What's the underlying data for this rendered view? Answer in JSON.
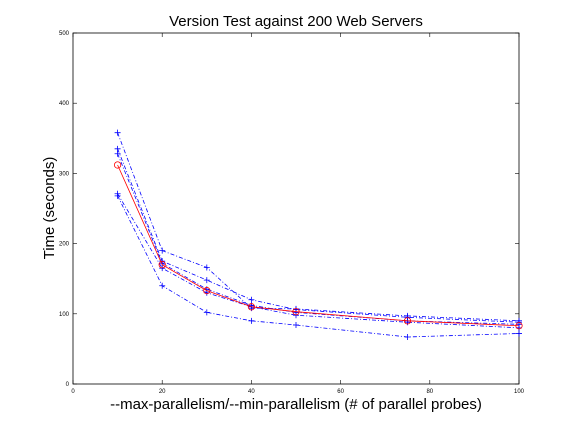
{
  "chart_data": {
    "type": "line",
    "title": "Version Test against 200 Web Servers",
    "xlabel": "--max-parallelism/--min-parallelism (# of parallel probes)",
    "ylabel": "Time (seconds)",
    "xlim": [
      0,
      100
    ],
    "ylim": [
      0,
      500
    ],
    "xticks": [
      0,
      20,
      40,
      60,
      80,
      100
    ],
    "yticks": [
      0,
      100,
      200,
      300,
      400,
      500
    ],
    "grid": false,
    "legend": "none",
    "x": [
      10,
      20,
      30,
      40,
      50,
      75,
      100
    ],
    "series": [
      {
        "values": [
          358,
          190,
          166,
          108,
          107,
          97,
          90
        ],
        "color": "#0000ff",
        "style": "dash-dot",
        "marker": "+"
      },
      {
        "values": [
          335,
          175,
          148,
          120,
          106,
          95,
          88
        ],
        "color": "#0000ff",
        "style": "dash-dot",
        "marker": "+"
      },
      {
        "values": [
          328,
          172,
          135,
          112,
          102,
          90,
          85
        ],
        "color": "#0000ff",
        "style": "dash-dot",
        "marker": "+"
      },
      {
        "values": [
          271,
          165,
          130,
          110,
          98,
          88,
          80
        ],
        "color": "#0000ff",
        "style": "dash-dot",
        "marker": "+"
      },
      {
        "values": [
          268,
          140,
          102,
          90,
          84,
          67,
          72
        ],
        "color": "#0000ff",
        "style": "dash-dot",
        "marker": "+"
      },
      {
        "values": [
          312,
          170,
          133,
          110,
          103,
          90,
          83
        ],
        "color": "#ff0000",
        "style": "solid",
        "marker": "o"
      }
    ]
  }
}
